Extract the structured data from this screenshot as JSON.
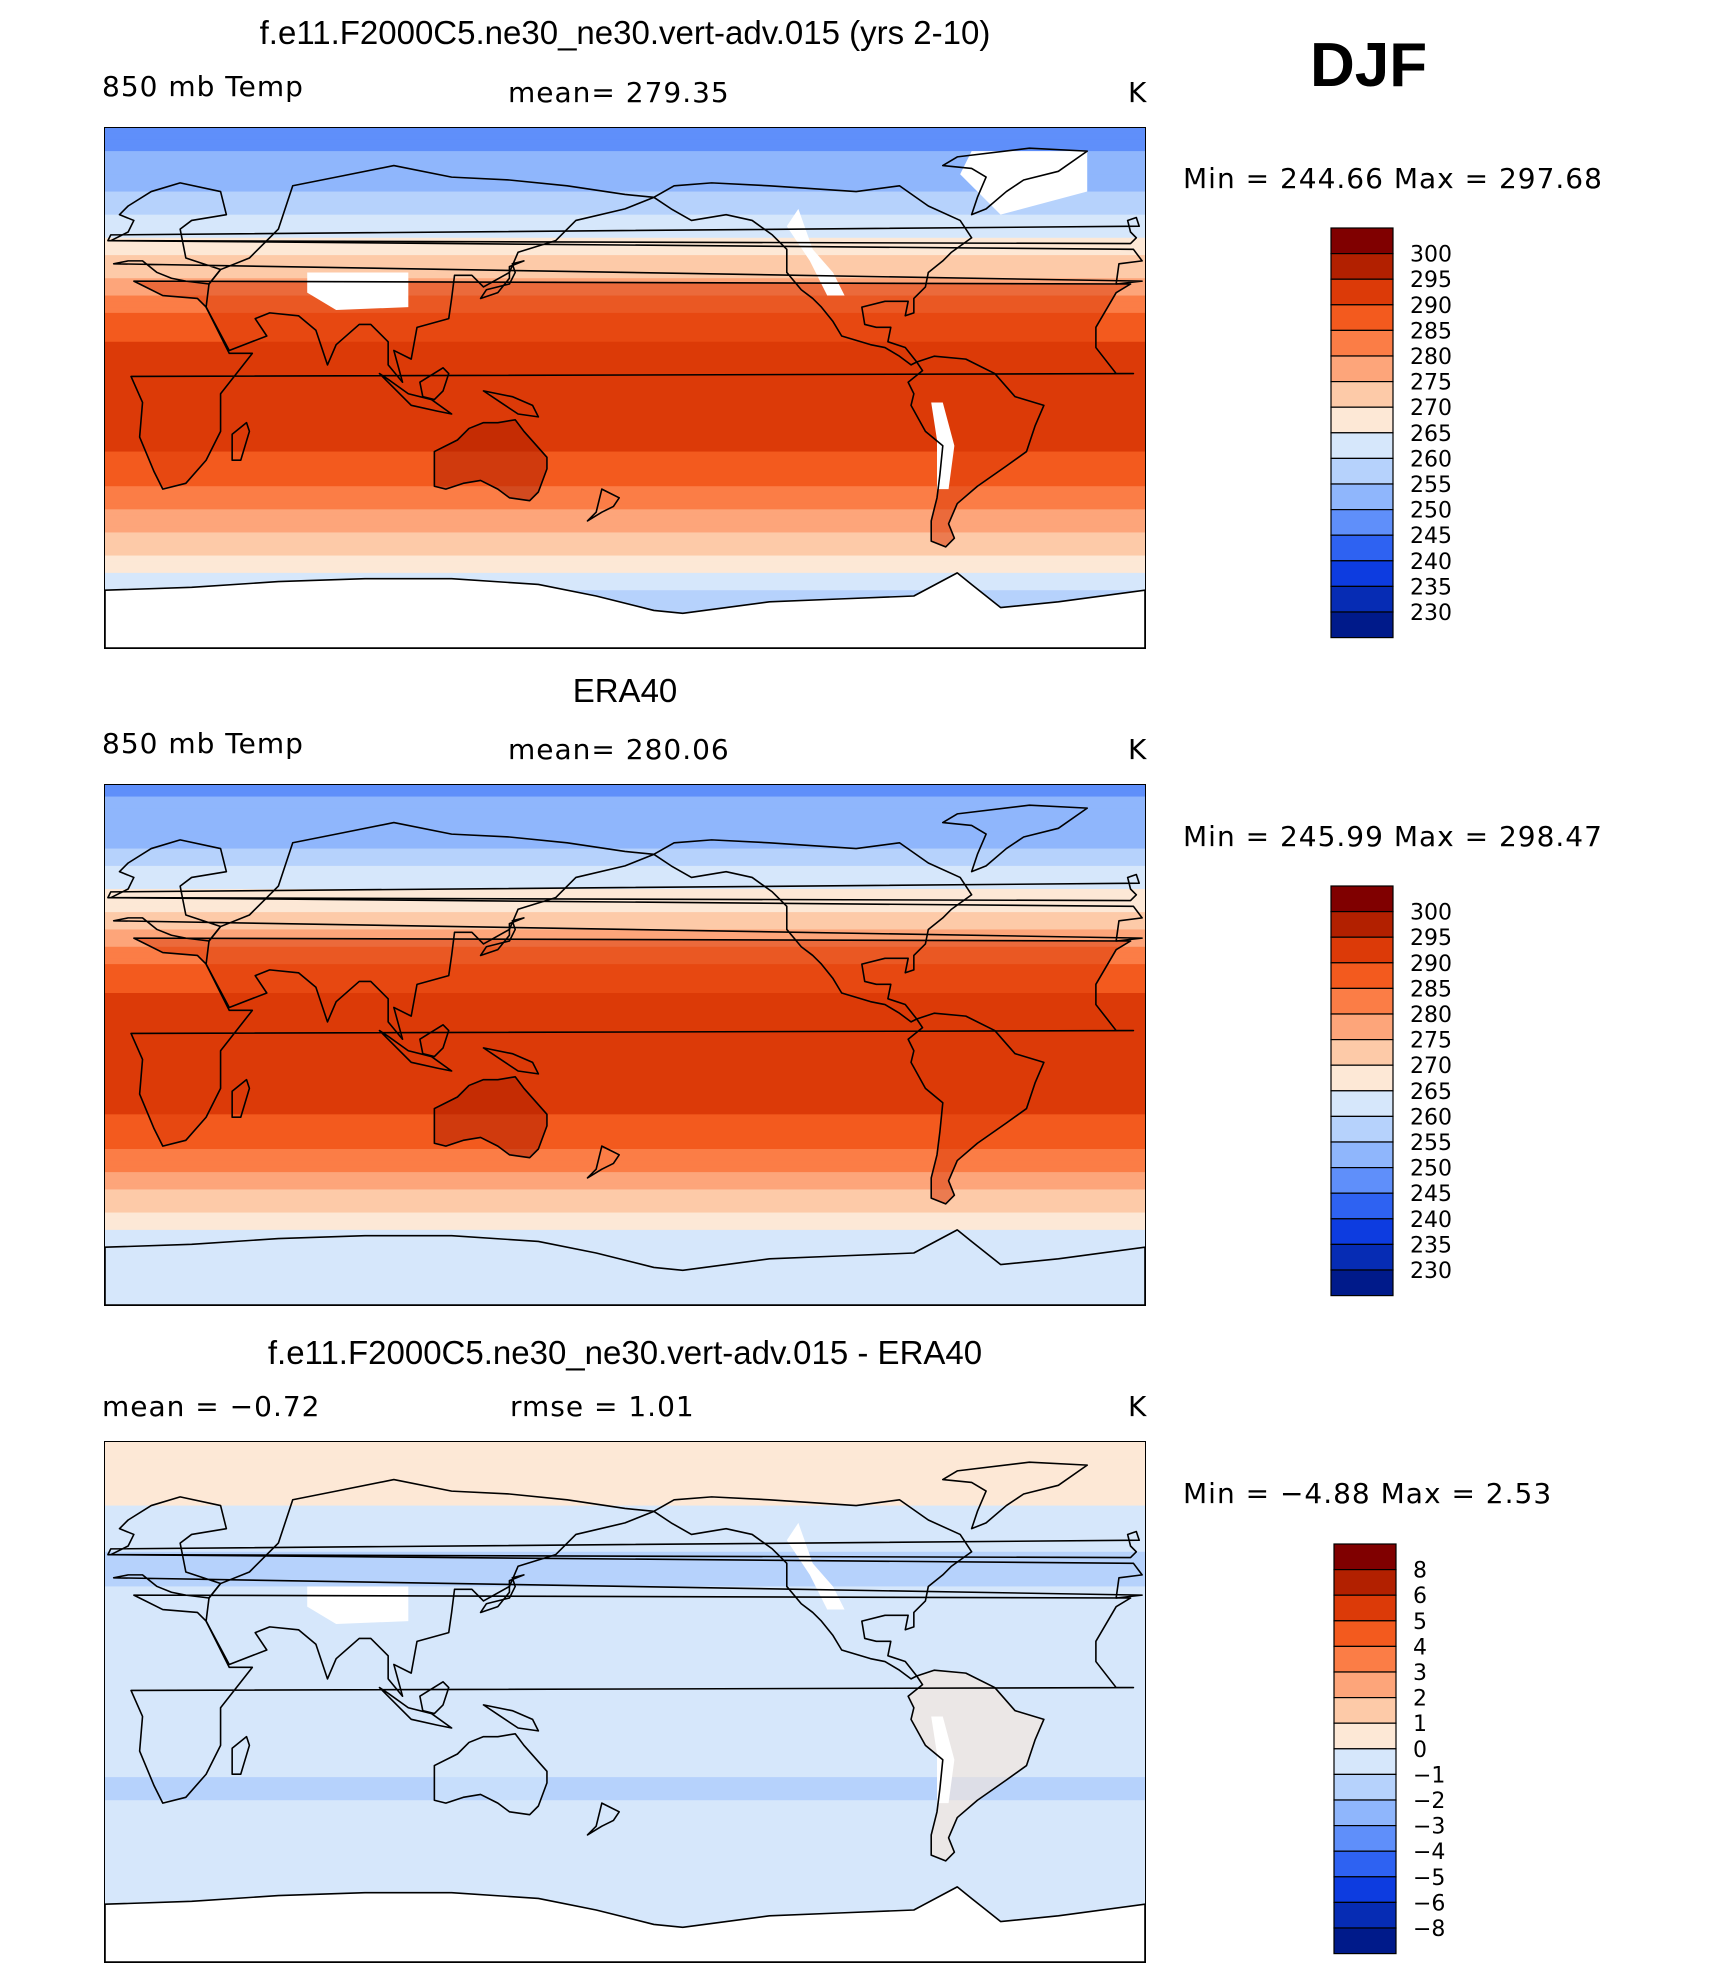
{
  "season": "DJF",
  "panels": [
    {
      "title": "f.e11.F2000C5.ne30_ne30.vert-adv.015 (yrs 2-10)",
      "left_label": "850 mb Temp",
      "mid_label": "mean=  279.35",
      "right_label": "K",
      "minmax": "Min  =  244.66  Max  =  297.68"
    },
    {
      "title": "ERA40",
      "left_label": "850 mb Temp",
      "mid_label": "mean=  280.06",
      "right_label": "K",
      "minmax": "Min  =  245.99  Max  =  298.47"
    },
    {
      "title": "f.e11.F2000C5.ne30_ne30.vert-adv.015 - ERA40",
      "left_label": "mean  =    −0.72",
      "mid_label": "rmse  =     1.01",
      "right_label": "K",
      "minmax": "Min  =    −4.88  Max  =     2.53"
    }
  ],
  "chart_data": [
    {
      "type": "heatmap",
      "title": "f.e11.F2000C5.ne30_ne30.vert-adv.015 (yrs 2-10)",
      "variable": "850 mb Temp",
      "units": "K",
      "mean": 279.35,
      "min": 244.66,
      "max": 297.68,
      "colorbar_levels": [
        300,
        295,
        290,
        285,
        280,
        275,
        270,
        265,
        260,
        255,
        250,
        245,
        240,
        235,
        230
      ],
      "colorbar_colors": [
        "#800000",
        "#b22000",
        "#dc3a08",
        "#f35a1e",
        "#fb7d46",
        "#fda57a",
        "#fdcaa8",
        "#fde8d6",
        "#d6e7fb",
        "#b6d2fc",
        "#8fb6fc",
        "#5f8ffa",
        "#2e62f2",
        "#0d3ce0",
        "#062cb4",
        "#001a8a"
      ],
      "lat_profile": [
        {
          "lat": 90,
          "value": 248
        },
        {
          "lat": 70,
          "value": 253
        },
        {
          "lat": 55,
          "value": 263
        },
        {
          "lat": 45,
          "value": 270
        },
        {
          "lat": 35,
          "value": 278
        },
        {
          "lat": 25,
          "value": 286
        },
        {
          "lat": 10,
          "value": 292
        },
        {
          "lat": 0,
          "value": 293
        },
        {
          "lat": -15,
          "value": 292
        },
        {
          "lat": -30,
          "value": 287
        },
        {
          "lat": -45,
          "value": 278
        },
        {
          "lat": -55,
          "value": 272
        },
        {
          "lat": -65,
          "value": 264
        },
        {
          "lat": -72,
          "value": 258
        }
      ]
    },
    {
      "type": "heatmap",
      "title": "ERA40",
      "variable": "850 mb Temp",
      "units": "K",
      "mean": 280.06,
      "min": 245.99,
      "max": 298.47,
      "colorbar_levels": [
        300,
        295,
        290,
        285,
        280,
        275,
        270,
        265,
        260,
        255,
        250,
        245,
        240,
        235,
        230
      ],
      "colorbar_colors": [
        "#800000",
        "#b22000",
        "#dc3a08",
        "#f35a1e",
        "#fb7d46",
        "#fda57a",
        "#fdcaa8",
        "#fde8d6",
        "#d6e7fb",
        "#b6d2fc",
        "#8fb6fc",
        "#5f8ffa",
        "#2e62f2",
        "#0d3ce0",
        "#062cb4",
        "#001a8a"
      ],
      "lat_profile": [
        {
          "lat": 90,
          "value": 249
        },
        {
          "lat": 70,
          "value": 254
        },
        {
          "lat": 55,
          "value": 264
        },
        {
          "lat": 45,
          "value": 271
        },
        {
          "lat": 35,
          "value": 279
        },
        {
          "lat": 25,
          "value": 287
        },
        {
          "lat": 10,
          "value": 293
        },
        {
          "lat": 0,
          "value": 294
        },
        {
          "lat": -15,
          "value": 293
        },
        {
          "lat": -30,
          "value": 288
        },
        {
          "lat": -45,
          "value": 279
        },
        {
          "lat": -55,
          "value": 272
        },
        {
          "lat": -65,
          "value": 264
        },
        {
          "lat": -72,
          "value": 261
        }
      ]
    },
    {
      "type": "heatmap",
      "title": "f.e11.F2000C5.ne30_ne30.vert-adv.015 - ERA40",
      "units": "K",
      "mean": -0.72,
      "rmse": 1.01,
      "min": -4.88,
      "max": 2.53,
      "colorbar_levels": [
        "8",
        "6",
        "5",
        "4",
        "3",
        "2",
        "1",
        "0",
        "−1",
        "−2",
        "−3",
        "−4",
        "−5",
        "−6",
        "−8"
      ],
      "colorbar_colors": [
        "#800000",
        "#b22000",
        "#dc3a08",
        "#f35a1e",
        "#fb7d46",
        "#fda57a",
        "#fdcaa8",
        "#fde8d6",
        "#d6e7fb",
        "#b6d2fc",
        "#8fb6fc",
        "#5f8ffa",
        "#2e62f2",
        "#0d3ce0",
        "#062cb4",
        "#001a8a"
      ],
      "lat_profile": [
        {
          "lat": 90,
          "value": 0.5
        },
        {
          "lat": 70,
          "value": 0.2
        },
        {
          "lat": 50,
          "value": -1.2
        },
        {
          "lat": 30,
          "value": -0.8
        },
        {
          "lat": 10,
          "value": -0.6
        },
        {
          "lat": -10,
          "value": -0.7
        },
        {
          "lat": -30,
          "value": -1.1
        },
        {
          "lat": -50,
          "value": -0.6
        },
        {
          "lat": -65,
          "value": -0.5
        },
        {
          "lat": -72,
          "value": -0.4
        }
      ]
    }
  ]
}
